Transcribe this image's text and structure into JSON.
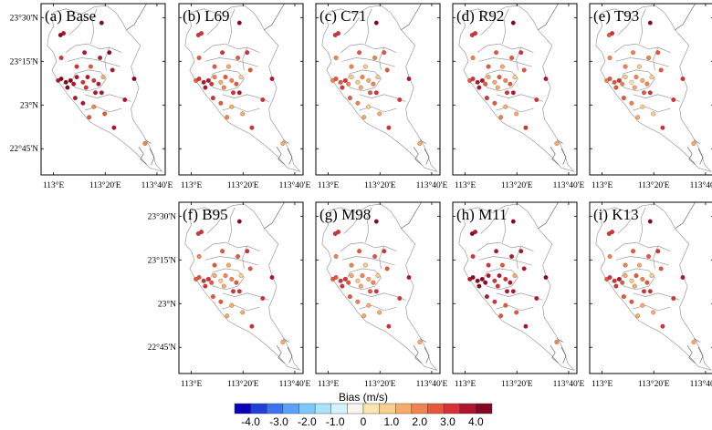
{
  "panels": [
    {
      "id": "a",
      "title": "(a) Base"
    },
    {
      "id": "b",
      "title": "(b) L69"
    },
    {
      "id": "c",
      "title": "(c) C71"
    },
    {
      "id": "d",
      "title": "(d) R92"
    },
    {
      "id": "e",
      "title": "(e) T93"
    },
    {
      "id": "f",
      "title": "(f) B95"
    },
    {
      "id": "g",
      "title": "(g) M98"
    },
    {
      "id": "h",
      "title": "(h) M11"
    },
    {
      "id": "i",
      "title": "(i) K13"
    }
  ],
  "axes": {
    "lon_ticks": [
      "113°E",
      "113°20'E",
      "113°40'E"
    ],
    "lat_ticks": [
      "23°30'N",
      "23°15'N",
      "23°N",
      "22°45'N"
    ],
    "lon_range": [
      112.92,
      113.72
    ],
    "lat_range": [
      22.6,
      23.58
    ]
  },
  "colorbar": {
    "title": "Bias (m/s)",
    "tick_labels": [
      "-4.0",
      "-3.0",
      "-2.0",
      "-1.0",
      "0",
      "1.0",
      "2.0",
      "3.0",
      "4.0"
    ],
    "colors": [
      "#0a00b8",
      "#1f3fd8",
      "#3d72ef",
      "#5aa2f7",
      "#7cc8fb",
      "#a8e2fc",
      "#d5f2fb",
      "#f7f7f0",
      "#fbe6b2",
      "#f9cd8c",
      "#f5ad69",
      "#ee8450",
      "#e6583d",
      "#d6303a",
      "#b01530",
      "#840824"
    ]
  },
  "stations": [
    {
      "lon": 113.045,
      "lat": 23.4
    },
    {
      "lon": 113.065,
      "lat": 23.41
    },
    {
      "lon": 113.31,
      "lat": 23.47
    },
    {
      "lon": 113.05,
      "lat": 23.27
    },
    {
      "lon": 113.2,
      "lat": 23.3
    },
    {
      "lon": 113.3,
      "lat": 23.27
    },
    {
      "lon": 113.36,
      "lat": 23.3
    },
    {
      "lon": 113.15,
      "lat": 23.22
    },
    {
      "lon": 113.24,
      "lat": 23.22
    },
    {
      "lon": 113.03,
      "lat": 23.14
    },
    {
      "lon": 113.05,
      "lat": 23.15
    },
    {
      "lon": 113.08,
      "lat": 23.13
    },
    {
      "lon": 113.11,
      "lat": 23.14
    },
    {
      "lon": 113.13,
      "lat": 23.12
    },
    {
      "lon": 113.09,
      "lat": 23.1
    },
    {
      "lon": 113.15,
      "lat": 23.16
    },
    {
      "lon": 113.19,
      "lat": 23.13
    },
    {
      "lon": 113.22,
      "lat": 23.16
    },
    {
      "lon": 113.26,
      "lat": 23.14
    },
    {
      "lon": 113.29,
      "lat": 23.12
    },
    {
      "lon": 113.21,
      "lat": 23.1
    },
    {
      "lon": 113.32,
      "lat": 23.16
    },
    {
      "lon": 113.38,
      "lat": 23.2
    },
    {
      "lon": 113.52,
      "lat": 23.15
    },
    {
      "lon": 113.27,
      "lat": 23.07
    },
    {
      "lon": 113.31,
      "lat": 23.07
    },
    {
      "lon": 113.14,
      "lat": 23.04
    },
    {
      "lon": 113.19,
      "lat": 23.01
    },
    {
      "lon": 113.26,
      "lat": 22.99
    },
    {
      "lon": 113.33,
      "lat": 22.95
    },
    {
      "lon": 113.46,
      "lat": 23.03
    },
    {
      "lon": 113.23,
      "lat": 22.93
    },
    {
      "lon": 113.39,
      "lat": 22.87
    },
    {
      "lon": 113.59,
      "lat": 22.78
    }
  ],
  "bias": {
    "a": [
      3.6,
      3.4,
      3.9,
      2.9,
      3.3,
      3.1,
      3.5,
      2.8,
      2.4,
      3.2,
      3.6,
      3.9,
      4.2,
      3.4,
      4.2,
      3.1,
      2.7,
      3.3,
      2.5,
      3.0,
      2.6,
      1.2,
      3.0,
      3.6,
      3.2,
      3.4,
      3.3,
      3.0,
      1.9,
      2.0,
      3.3,
      2.3,
      3.4,
      1.5
    ],
    "b": [
      2.7,
      2.8,
      3.7,
      2.1,
      2.6,
      2.4,
      2.9,
      2.1,
      1.4,
      2.3,
      2.6,
      3.0,
      3.2,
      2.6,
      3.2,
      1.6,
      1.2,
      2.4,
      1.8,
      2.2,
      1.6,
      0.9,
      2.3,
      3.1,
      2.8,
      3.0,
      2.6,
      2.1,
      1.2,
      1.3,
      2.8,
      1.6,
      2.9,
      1.2
    ],
    "c": [
      2.5,
      2.6,
      3.6,
      1.6,
      2.0,
      1.9,
      2.4,
      1.7,
      0.6,
      1.8,
      2.1,
      2.4,
      2.7,
      1.9,
      2.5,
      0.9,
      0.5,
      1.6,
      1.2,
      1.8,
      1.1,
      0.6,
      2.1,
      3.0,
      2.3,
      2.8,
      2.2,
      1.7,
      0.9,
      1.0,
      2.6,
      1.3,
      2.7,
      1.1
    ],
    "d": [
      2.7,
      2.8,
      3.6,
      1.8,
      2.4,
      2.3,
      2.7,
      2.1,
      1.3,
      2.3,
      2.8,
      3.0,
      3.1,
      2.4,
      3.0,
      1.4,
      1.0,
      2.2,
      1.7,
      2.1,
      1.4,
      0.8,
      2.4,
      3.1,
      2.7,
      3.0,
      2.5,
      2.1,
      1.2,
      1.3,
      2.8,
      1.5,
      2.9,
      1.2
    ],
    "e": [
      2.4,
      2.5,
      3.5,
      1.5,
      1.9,
      1.8,
      2.3,
      1.6,
      0.5,
      1.7,
      2.0,
      2.3,
      2.6,
      1.8,
      2.4,
      0.8,
      0.4,
      1.5,
      1.1,
      1.7,
      1.0,
      0.5,
      2.0,
      2.9,
      2.2,
      2.7,
      2.1,
      1.6,
      0.8,
      0.9,
      2.5,
      1.2,
      2.6,
      1.0
    ],
    "f": [
      2.6,
      2.7,
      3.6,
      1.7,
      2.3,
      2.2,
      2.6,
      2.0,
      1.0,
      2.1,
      2.4,
      2.7,
      2.8,
      2.2,
      2.6,
      1.1,
      0.8,
      1.9,
      1.5,
      2.0,
      1.3,
      0.7,
      2.3,
      3.0,
      2.5,
      2.9,
      2.4,
      2.0,
      1.1,
      1.2,
      2.7,
      1.4,
      2.8,
      1.1
    ],
    "g": [
      2.5,
      2.6,
      3.5,
      1.6,
      2.1,
      2.0,
      2.5,
      1.8,
      0.8,
      2.0,
      2.3,
      2.6,
      2.8,
      2.1,
      2.7,
      1.0,
      0.6,
      1.7,
      1.3,
      1.9,
      1.2,
      0.6,
      2.2,
      3.0,
      2.4,
      2.8,
      2.3,
      1.8,
      1.0,
      1.1,
      2.6,
      1.3,
      2.7,
      1.1
    ],
    "h": [
      3.5,
      3.3,
      3.8,
      2.9,
      3.2,
      3.0,
      3.4,
      2.9,
      2.4,
      3.3,
      3.7,
      4.3,
      4.6,
      3.7,
      4.3,
      3.0,
      2.6,
      3.2,
      2.6,
      3.1,
      2.7,
      1.3,
      3.0,
      3.5,
      3.2,
      3.4,
      3.3,
      2.9,
      2.0,
      2.1,
      3.2,
      2.3,
      3.3,
      1.6
    ],
    "i": [
      2.6,
      2.7,
      3.6,
      1.8,
      2.3,
      2.1,
      2.6,
      1.9,
      1.0,
      2.2,
      2.5,
      2.8,
      3.0,
      2.3,
      2.8,
      1.2,
      0.8,
      2.0,
      1.5,
      2.0,
      1.3,
      0.7,
      2.3,
      3.0,
      2.5,
      2.9,
      2.4,
      2.0,
      1.1,
      1.2,
      2.7,
      1.4,
      2.8,
      1.1
    ]
  }
}
